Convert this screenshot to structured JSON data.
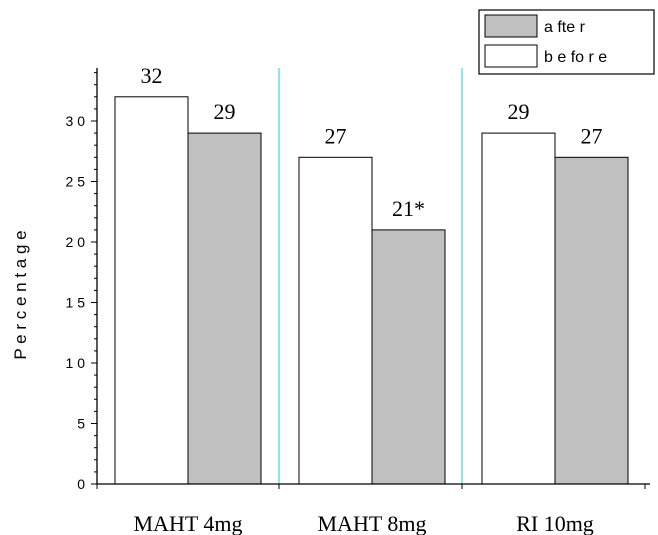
{
  "chart_data": {
    "type": "bar",
    "title": "",
    "xlabel": "",
    "ylabel": "P e r c e n t a g e",
    "ylim": [
      0,
      35
    ],
    "yticks": [
      0,
      5,
      10,
      15,
      20,
      25,
      30
    ],
    "ytick_labels": [
      "0",
      "5",
      "1 0",
      "1 5",
      "2 0",
      "2 5",
      "3 0"
    ],
    "categories": [
      "MAHT 4mg",
      "MAHT 8mg",
      "RI 10mg"
    ],
    "series": [
      {
        "name": "b e fo r e",
        "values": [
          32,
          27,
          29
        ],
        "labels": [
          "32",
          "27",
          "29"
        ],
        "color": "#ffffff"
      },
      {
        "name": "a fte r",
        "values": [
          29,
          21,
          27
        ],
        "labels": [
          "29",
          "21*",
          "27"
        ],
        "color": "#c0c0c0"
      }
    ],
    "separator_color": "#66e0e8",
    "legend_position": "top-right",
    "grid": false
  }
}
